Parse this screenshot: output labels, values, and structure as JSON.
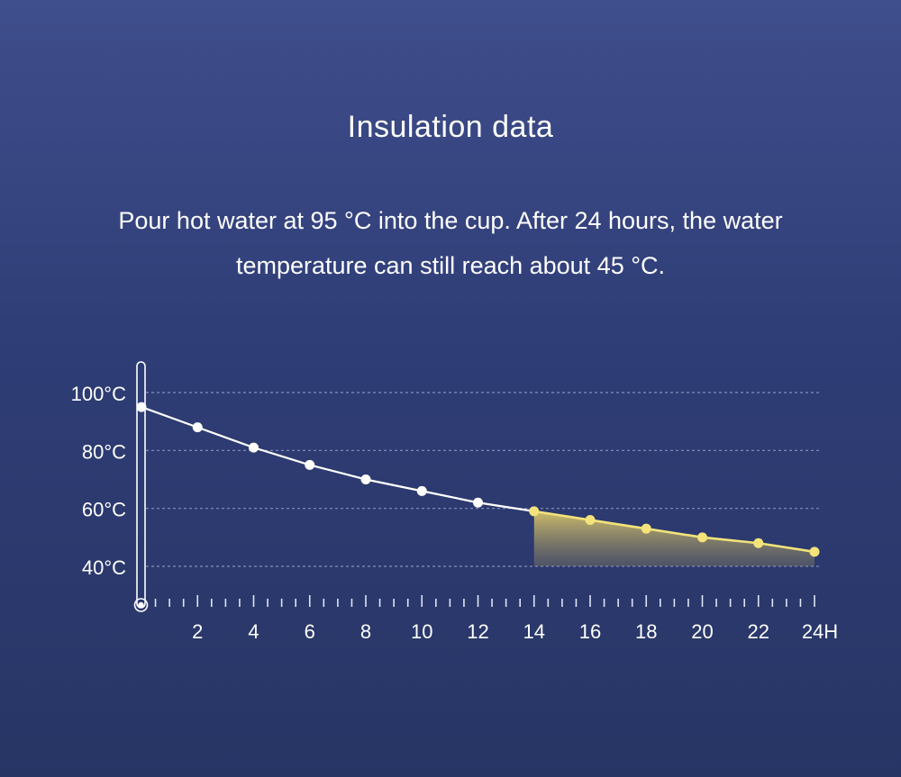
{
  "header": {
    "title": "Insulation data",
    "description": "Pour hot water at 95 °C into the cup. After 24 hours, the water temperature can still reach about 45 °C."
  },
  "colors": {
    "line_white": "#ffffff",
    "line_yellow": "#f3e37a",
    "fill_yellow": "#c9b85e",
    "grid": "#aab4d8"
  },
  "chart_data": {
    "type": "line",
    "title": "Insulation data",
    "x": [
      0,
      2,
      4,
      6,
      8,
      10,
      12,
      14,
      16,
      18,
      20,
      22,
      24
    ],
    "values": [
      95,
      88,
      81,
      75,
      70,
      66,
      62,
      59,
      56,
      53,
      50,
      48,
      45
    ],
    "highlight_from_x": 14,
    "x_tick_labels": [
      "2",
      "4",
      "6",
      "8",
      "10",
      "12",
      "14",
      "16",
      "18",
      "20",
      "22",
      "24H"
    ],
    "x_tick_values": [
      2,
      4,
      6,
      8,
      10,
      12,
      14,
      16,
      18,
      20,
      22,
      24
    ],
    "y_tick_labels": [
      "100°C",
      "80°C",
      "60°C",
      "40°C"
    ],
    "y_tick_values": [
      100,
      80,
      60,
      40
    ],
    "xlim": [
      0,
      24
    ],
    "ylim": [
      40,
      100
    ],
    "grid": true,
    "xlabel": "",
    "ylabel": ""
  }
}
